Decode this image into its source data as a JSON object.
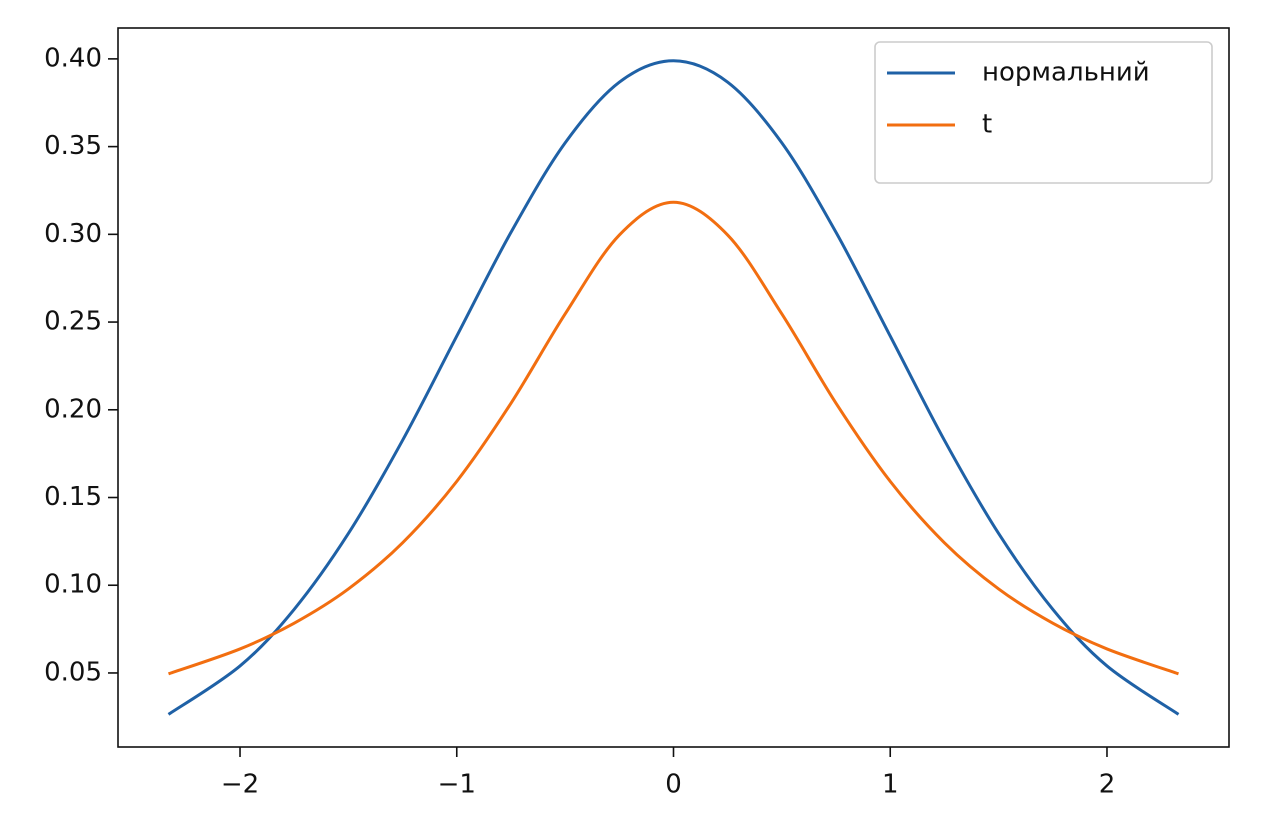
{
  "chart_data": {
    "type": "line",
    "x": [
      -2.33,
      -2.0,
      -1.75,
      -1.5,
      -1.25,
      -1.0,
      -0.75,
      -0.5,
      -0.25,
      0,
      0.25,
      0.5,
      0.75,
      1.0,
      1.25,
      1.5,
      1.75,
      2.0,
      2.33
    ],
    "series": [
      {
        "name": "нормальний",
        "color": "#1f61a6",
        "values": [
          0.0264,
          0.054,
          0.0863,
          0.1295,
          0.1826,
          0.242,
          0.3011,
          0.3521,
          0.3867,
          0.3989,
          0.3867,
          0.3521,
          0.3011,
          0.242,
          0.1826,
          0.1295,
          0.0863,
          0.054,
          0.0264
        ]
      },
      {
        "name": "t",
        "color": "#f26e10",
        "values": [
          0.0495,
          0.0637,
          0.0784,
          0.0979,
          0.1242,
          0.1592,
          0.2037,
          0.2546,
          0.2996,
          0.3183,
          0.2996,
          0.2546,
          0.2037,
          0.1592,
          0.1242,
          0.0979,
          0.0784,
          0.0637,
          0.0495
        ]
      }
    ],
    "xlim": [
      -2.563,
      2.563
    ],
    "ylim": [
      0.0078,
      0.4176
    ],
    "xticks": [
      {
        "value": -2,
        "label": "−2"
      },
      {
        "value": -1,
        "label": "−1"
      },
      0,
      1,
      2
    ],
    "yticks": [
      0.05,
      {
        "value": 0.1,
        "label": "0.10"
      },
      0.15,
      {
        "value": 0.2,
        "label": "0.20"
      },
      0.25,
      {
        "value": 0.3,
        "label": "0.30"
      },
      0.35,
      {
        "value": 0.4,
        "label": "0.40"
      }
    ],
    "legend": "upper right"
  }
}
